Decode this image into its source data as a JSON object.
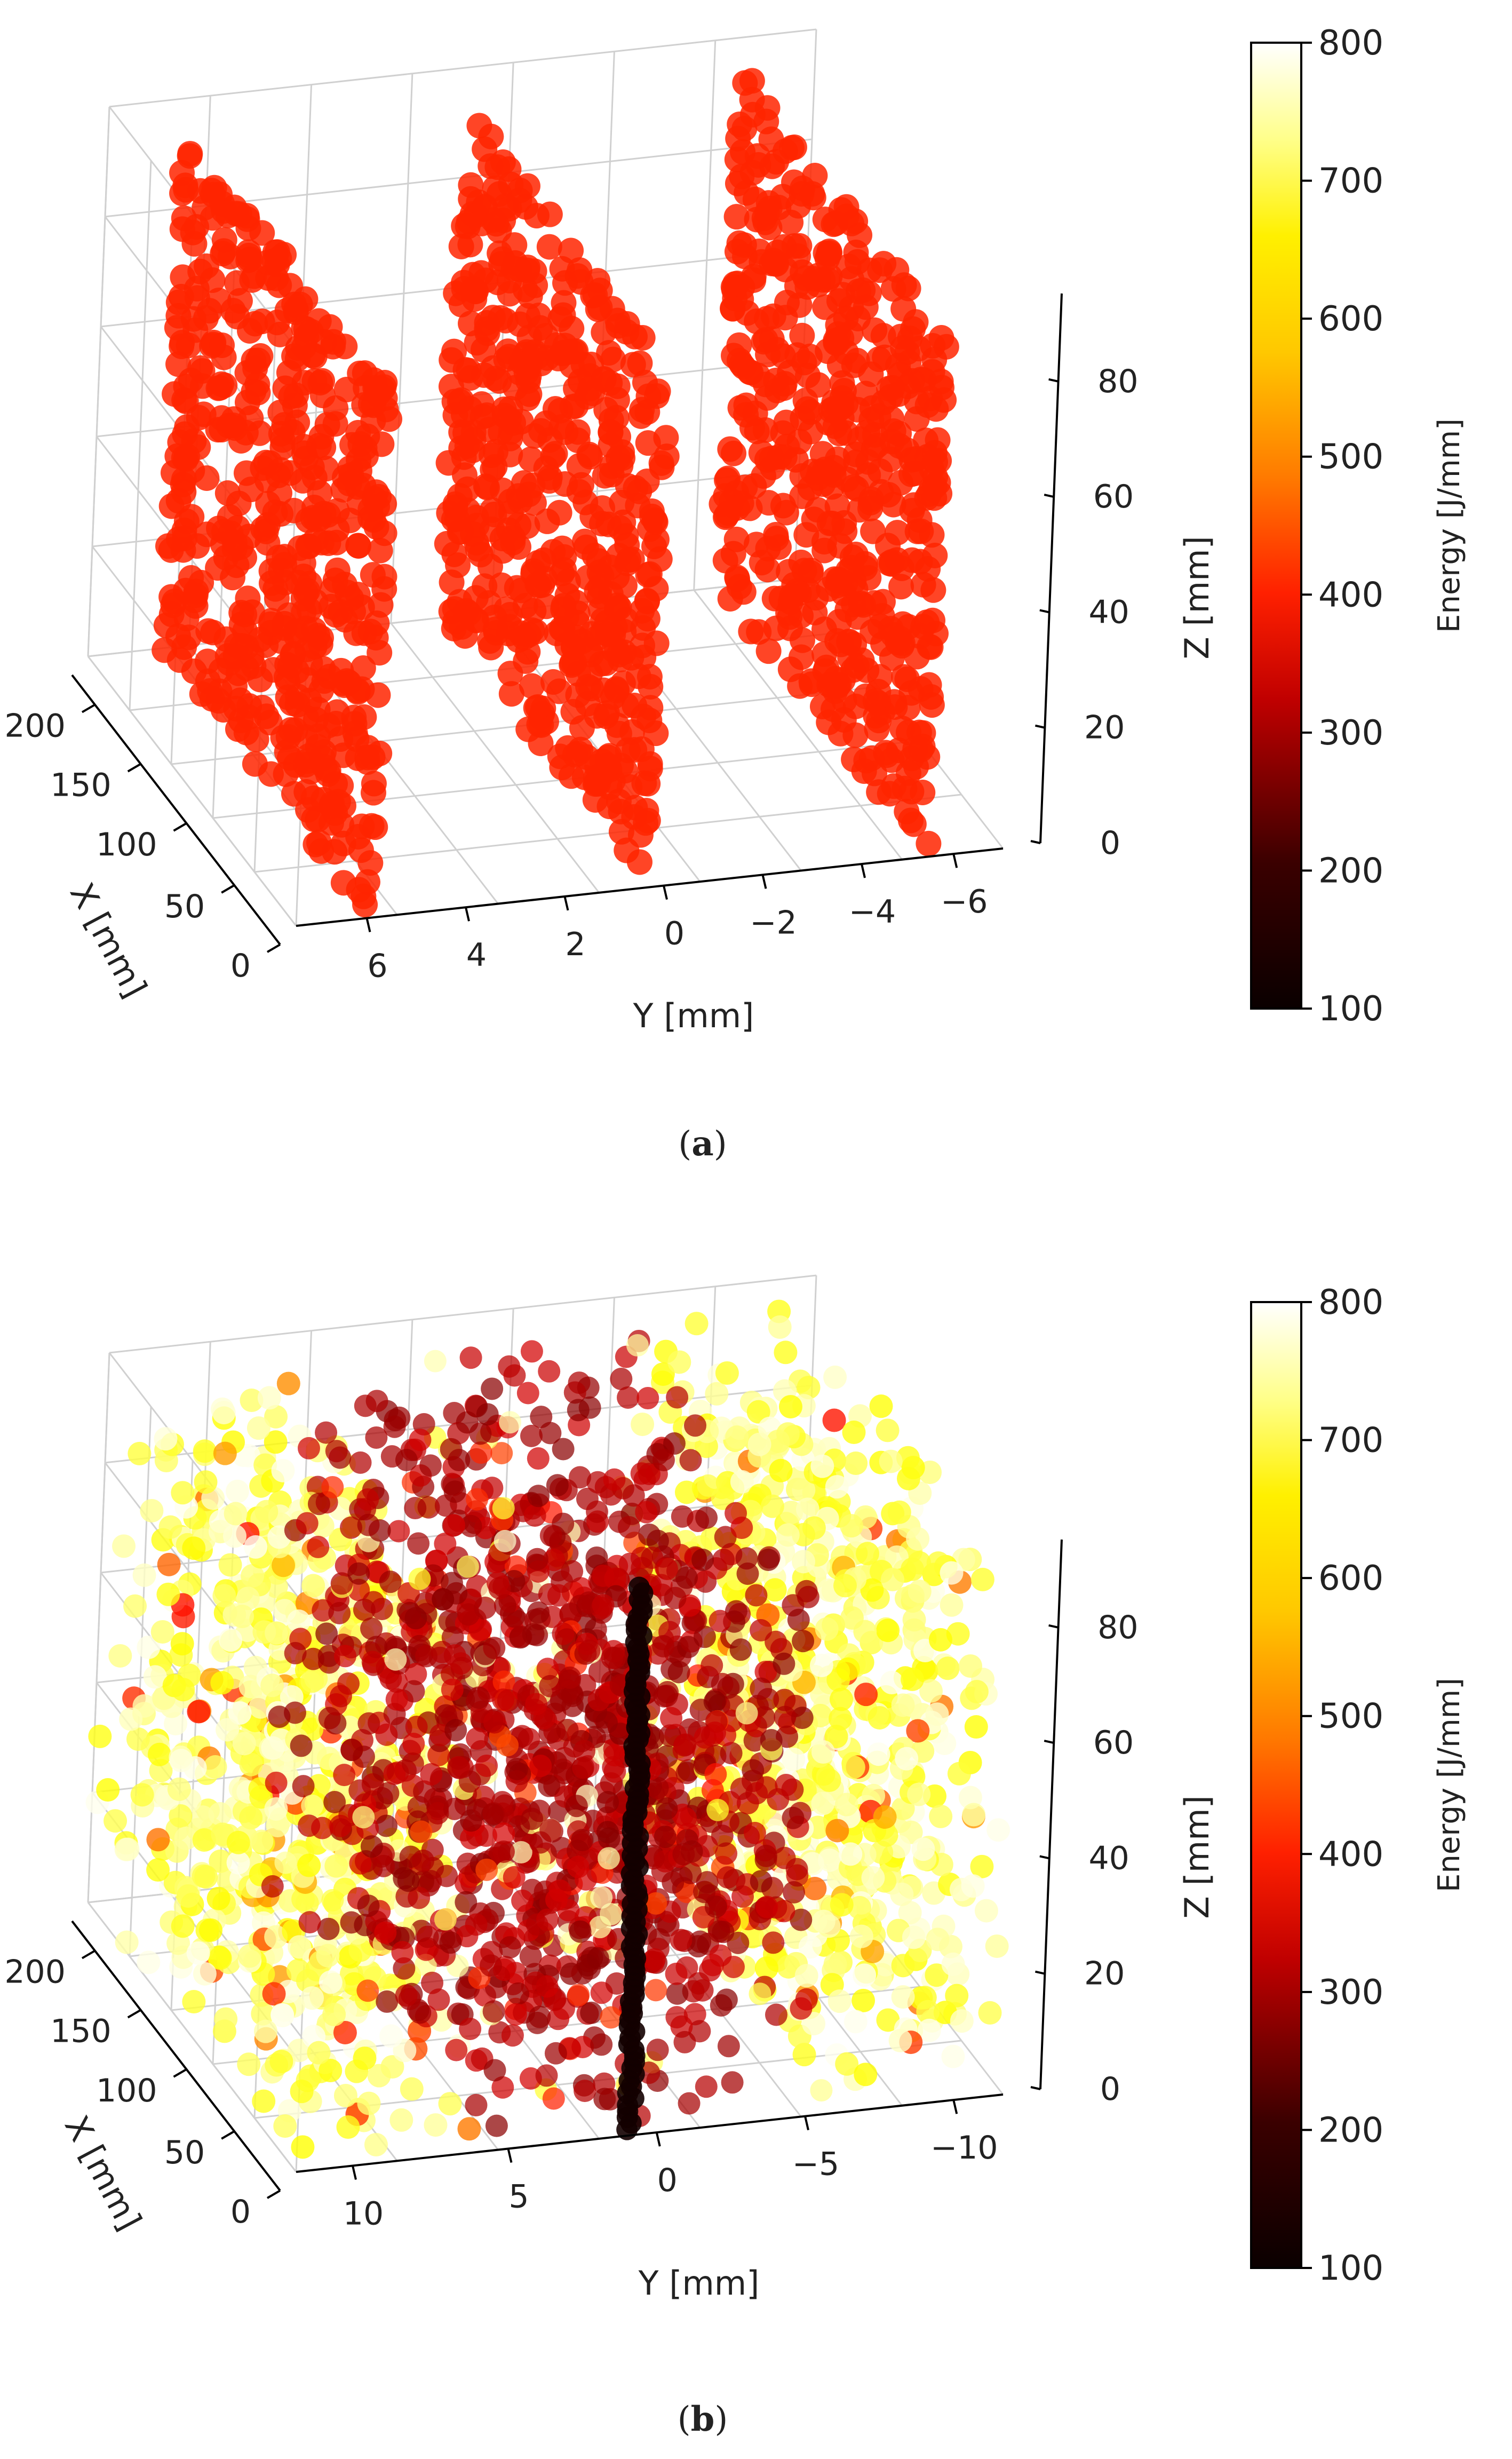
{
  "chart_data": [
    {
      "panel": "a",
      "type": "scatter",
      "projection": "3d",
      "caption": "(a)",
      "caption_bold": "a",
      "xlabel": "X [mm]",
      "ylabel": "Y [mm]",
      "zlabel": "Z [mm]",
      "x_ticks": [
        "0",
        "50",
        "100",
        "150",
        "200"
      ],
      "y_ticks": [
        "6",
        "4",
        "2",
        "0",
        "−2",
        "−4",
        "−6"
      ],
      "z_ticks": [
        "0",
        "20",
        "40",
        "60",
        "80"
      ],
      "xlim": [
        0,
        230
      ],
      "ylim": [
        7,
        -7
      ],
      "zlim": [
        0,
        95
      ],
      "colorbar": {
        "label": "Energy [J/mm]",
        "ticks": [
          "100",
          "200",
          "300",
          "400",
          "500",
          "600",
          "700",
          "800"
        ],
        "range": [
          100,
          800
        ],
        "colormap": "hot"
      },
      "series": [
        {
          "y": 5.5,
          "x_range": [
            0,
            230
          ],
          "z_range": [
            0,
            95
          ],
          "energy": 400
        },
        {
          "y": 0.0,
          "x_range": [
            0,
            230
          ],
          "z_range": [
            0,
            95
          ],
          "energy": 400
        },
        {
          "y": -5.5,
          "x_range": [
            0,
            230
          ],
          "z_range": [
            0,
            95
          ],
          "energy": 400
        }
      ]
    },
    {
      "panel": "b",
      "type": "scatter",
      "projection": "3d",
      "caption": "(b)",
      "caption_bold": "b",
      "xlabel": "X [mm]",
      "ylabel": "Y [mm]",
      "zlabel": "Z [mm]",
      "x_ticks": [
        "0",
        "50",
        "100",
        "150",
        "200"
      ],
      "y_ticks": [
        "10",
        "5",
        "0",
        "−5",
        "−10"
      ],
      "z_ticks": [
        "0",
        "20",
        "40",
        "60",
        "80"
      ],
      "xlim": [
        0,
        230
      ],
      "ylim": [
        12,
        -12
      ],
      "zlim": [
        0,
        95
      ],
      "colorbar": {
        "label": "Energy [J/mm]",
        "ticks": [
          "100",
          "200",
          "300",
          "400",
          "500",
          "600",
          "700",
          "800"
        ],
        "range": [
          100,
          800
        ],
        "colormap": "hot"
      },
      "regions": [
        {
          "y_range": [
            12,
            6
          ],
          "energy_range": [
            620,
            790
          ]
        },
        {
          "y_range": [
            6,
            -6
          ],
          "energy_range": [
            240,
            320
          ]
        },
        {
          "y_range": [
            -6,
            -12
          ],
          "energy_range": [
            620,
            790
          ]
        },
        {
          "y": 0,
          "energy": 120
        }
      ]
    }
  ]
}
